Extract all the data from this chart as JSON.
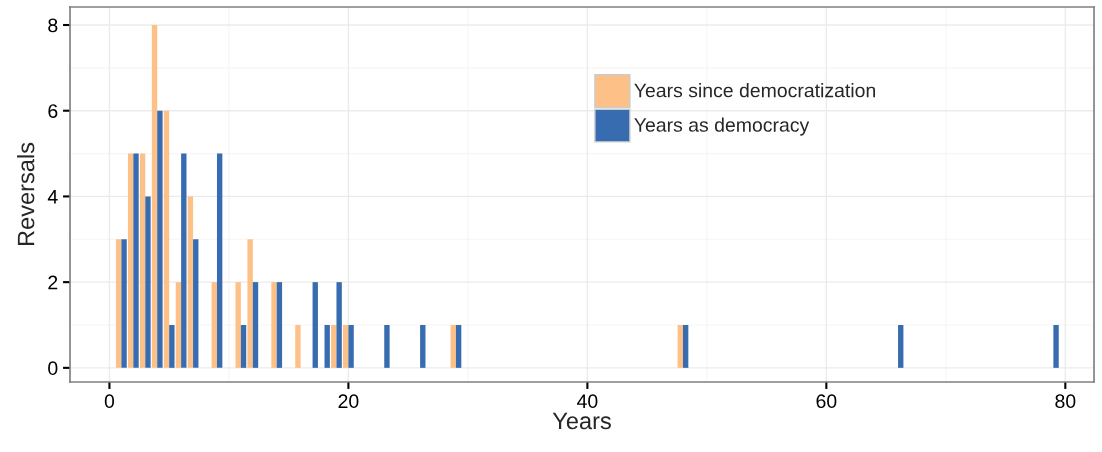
{
  "chart_data": {
    "type": "bar",
    "xlabel": "Years",
    "ylabel": "Reversals",
    "x": [
      1,
      2,
      3,
      4,
      5,
      6,
      7,
      9,
      11,
      12,
      14,
      16,
      17,
      18,
      19,
      20,
      23,
      26,
      29,
      48,
      66,
      79
    ],
    "series": [
      {
        "name": "Years since democratization",
        "color": "#fdc086",
        "values": [
          3,
          5,
          5,
          8,
          6,
          2,
          4,
          2,
          2,
          3,
          2,
          1,
          null,
          null,
          1,
          1,
          null,
          null,
          1,
          1,
          null,
          null
        ]
      },
      {
        "name": "Years as democracy",
        "color": "#386cb0",
        "values": [
          3,
          5,
          4,
          6,
          1,
          5,
          3,
          5,
          1,
          2,
          2,
          null,
          2,
          1,
          2,
          1,
          1,
          1,
          1,
          1,
          1,
          1
        ]
      }
    ],
    "xlim": [
      -3.3,
      82.4
    ],
    "ylim": [
      -0.33,
      8.42
    ],
    "xticks": [
      0,
      20,
      40,
      60,
      80
    ],
    "yticks": [
      0,
      2,
      4,
      6,
      8
    ],
    "grid": true,
    "legend": "top right"
  }
}
